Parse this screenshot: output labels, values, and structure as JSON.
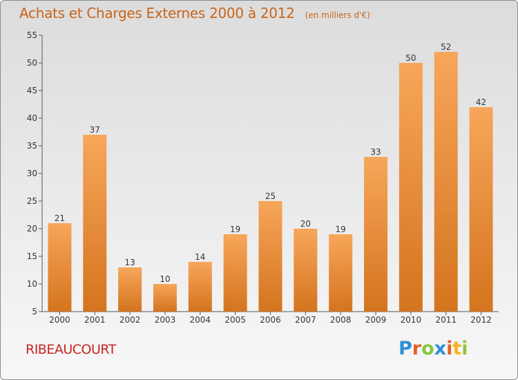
{
  "chart_data": {
    "type": "bar",
    "title": "Achats et Charges Externes 2000 à 2012",
    "unit": "(en milliers d'€)",
    "categories": [
      "2000",
      "2001",
      "2002",
      "2003",
      "2004",
      "2005",
      "2006",
      "2007",
      "2008",
      "2009",
      "2010",
      "2011",
      "2012"
    ],
    "values": [
      21,
      37,
      13,
      10,
      14,
      19,
      25,
      20,
      19,
      33,
      50,
      52,
      42
    ],
    "ylim": [
      5,
      55
    ],
    "yticks": [
      5,
      10,
      15,
      20,
      25,
      30,
      35,
      40,
      45,
      50,
      55
    ],
    "grid": false,
    "bar_color_top": "#f7a65a",
    "bar_color_bottom": "#d4741e"
  },
  "commune": "RIBEAUCOURT",
  "logo": {
    "letters": [
      "P",
      "r",
      "o",
      "x",
      "i",
      "t",
      "i"
    ],
    "colors": [
      "#2e8fd6",
      "#e0632a",
      "#8cc43c",
      "#2e8fd6",
      "#e0632a",
      "#f2b51c",
      "#8cc43c"
    ]
  }
}
